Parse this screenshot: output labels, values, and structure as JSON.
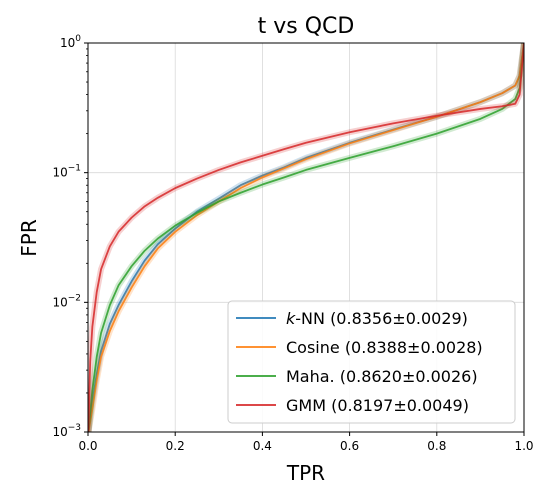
{
  "chart_data": {
    "type": "line",
    "title": "t vs QCD",
    "xlabel": "TPR",
    "ylabel": "FPR",
    "xlim": [
      0,
      1
    ],
    "ylim": [
      0.001,
      1
    ],
    "yscale": "log",
    "grid": true,
    "legend_position": "bottom-right",
    "x_ticks": [
      "0.0",
      "0.2",
      "0.4",
      "0.6",
      "0.8",
      "1.0"
    ],
    "y_ticks": [
      {
        "value": 0.001,
        "base": "10",
        "exp": "−3"
      },
      {
        "value": 0.01,
        "base": "10",
        "exp": "−2"
      },
      {
        "value": 0.1,
        "base": "10",
        "exp": "−1"
      },
      {
        "value": 1,
        "base": "10",
        "exp": "0"
      }
    ],
    "series": [
      {
        "name": "k-NN",
        "name_italic": "k",
        "name_rest": "-NN (0.8356±0.0029)",
        "color": "#1f77b4",
        "x": [
          0.001,
          0.01,
          0.02,
          0.03,
          0.05,
          0.07,
          0.1,
          0.13,
          0.16,
          0.2,
          0.25,
          0.3,
          0.35,
          0.4,
          0.45,
          0.5,
          0.6,
          0.7,
          0.8,
          0.9,
          0.95,
          0.98,
          0.99,
          1.0
        ],
        "y": [
          0.001,
          0.0017,
          0.0028,
          0.0042,
          0.0068,
          0.0095,
          0.0145,
          0.021,
          0.028,
          0.037,
          0.05,
          0.063,
          0.08,
          0.095,
          0.11,
          0.13,
          0.17,
          0.215,
          0.27,
          0.35,
          0.41,
          0.47,
          0.56,
          1.0
        ]
      },
      {
        "name": "Cosine",
        "name_italic": "",
        "name_rest": "Cosine (0.8388±0.0028)",
        "color": "#ff7f0e",
        "x": [
          0.001,
          0.01,
          0.02,
          0.03,
          0.05,
          0.07,
          0.1,
          0.13,
          0.16,
          0.2,
          0.25,
          0.3,
          0.35,
          0.4,
          0.45,
          0.5,
          0.6,
          0.7,
          0.8,
          0.9,
          0.95,
          0.98,
          0.99,
          1.0
        ],
        "y": [
          0.001,
          0.0015,
          0.0025,
          0.0038,
          0.006,
          0.0085,
          0.013,
          0.019,
          0.026,
          0.035,
          0.047,
          0.06,
          0.076,
          0.092,
          0.108,
          0.127,
          0.168,
          0.213,
          0.27,
          0.35,
          0.41,
          0.47,
          0.56,
          1.0
        ]
      },
      {
        "name": "Maha.",
        "name_italic": "",
        "name_rest": "Maha. (0.8620±0.0026)",
        "color": "#2ca02c",
        "x": [
          0.001,
          0.01,
          0.02,
          0.03,
          0.05,
          0.07,
          0.1,
          0.13,
          0.16,
          0.2,
          0.25,
          0.3,
          0.35,
          0.4,
          0.45,
          0.5,
          0.6,
          0.7,
          0.8,
          0.9,
          0.95,
          0.98,
          0.99,
          1.0
        ],
        "y": [
          0.001,
          0.0021,
          0.0038,
          0.0058,
          0.0095,
          0.0135,
          0.019,
          0.025,
          0.031,
          0.039,
          0.049,
          0.06,
          0.07,
          0.081,
          0.092,
          0.105,
          0.13,
          0.16,
          0.2,
          0.26,
          0.31,
          0.37,
          0.45,
          1.0
        ]
      },
      {
        "name": "GMM",
        "name_italic": "",
        "name_rest": "GMM (0.8197±0.0049)",
        "color": "#d62728",
        "x": [
          0.001,
          0.005,
          0.01,
          0.02,
          0.03,
          0.05,
          0.07,
          0.1,
          0.13,
          0.16,
          0.2,
          0.25,
          0.3,
          0.35,
          0.4,
          0.45,
          0.5,
          0.6,
          0.7,
          0.8,
          0.9,
          0.95,
          0.98,
          0.99,
          1.0
        ],
        "y": [
          0.001,
          0.0035,
          0.0065,
          0.012,
          0.018,
          0.027,
          0.035,
          0.045,
          0.055,
          0.064,
          0.076,
          0.09,
          0.105,
          0.12,
          0.135,
          0.152,
          0.17,
          0.205,
          0.24,
          0.275,
          0.31,
          0.325,
          0.34,
          0.4,
          1.0
        ]
      }
    ]
  }
}
